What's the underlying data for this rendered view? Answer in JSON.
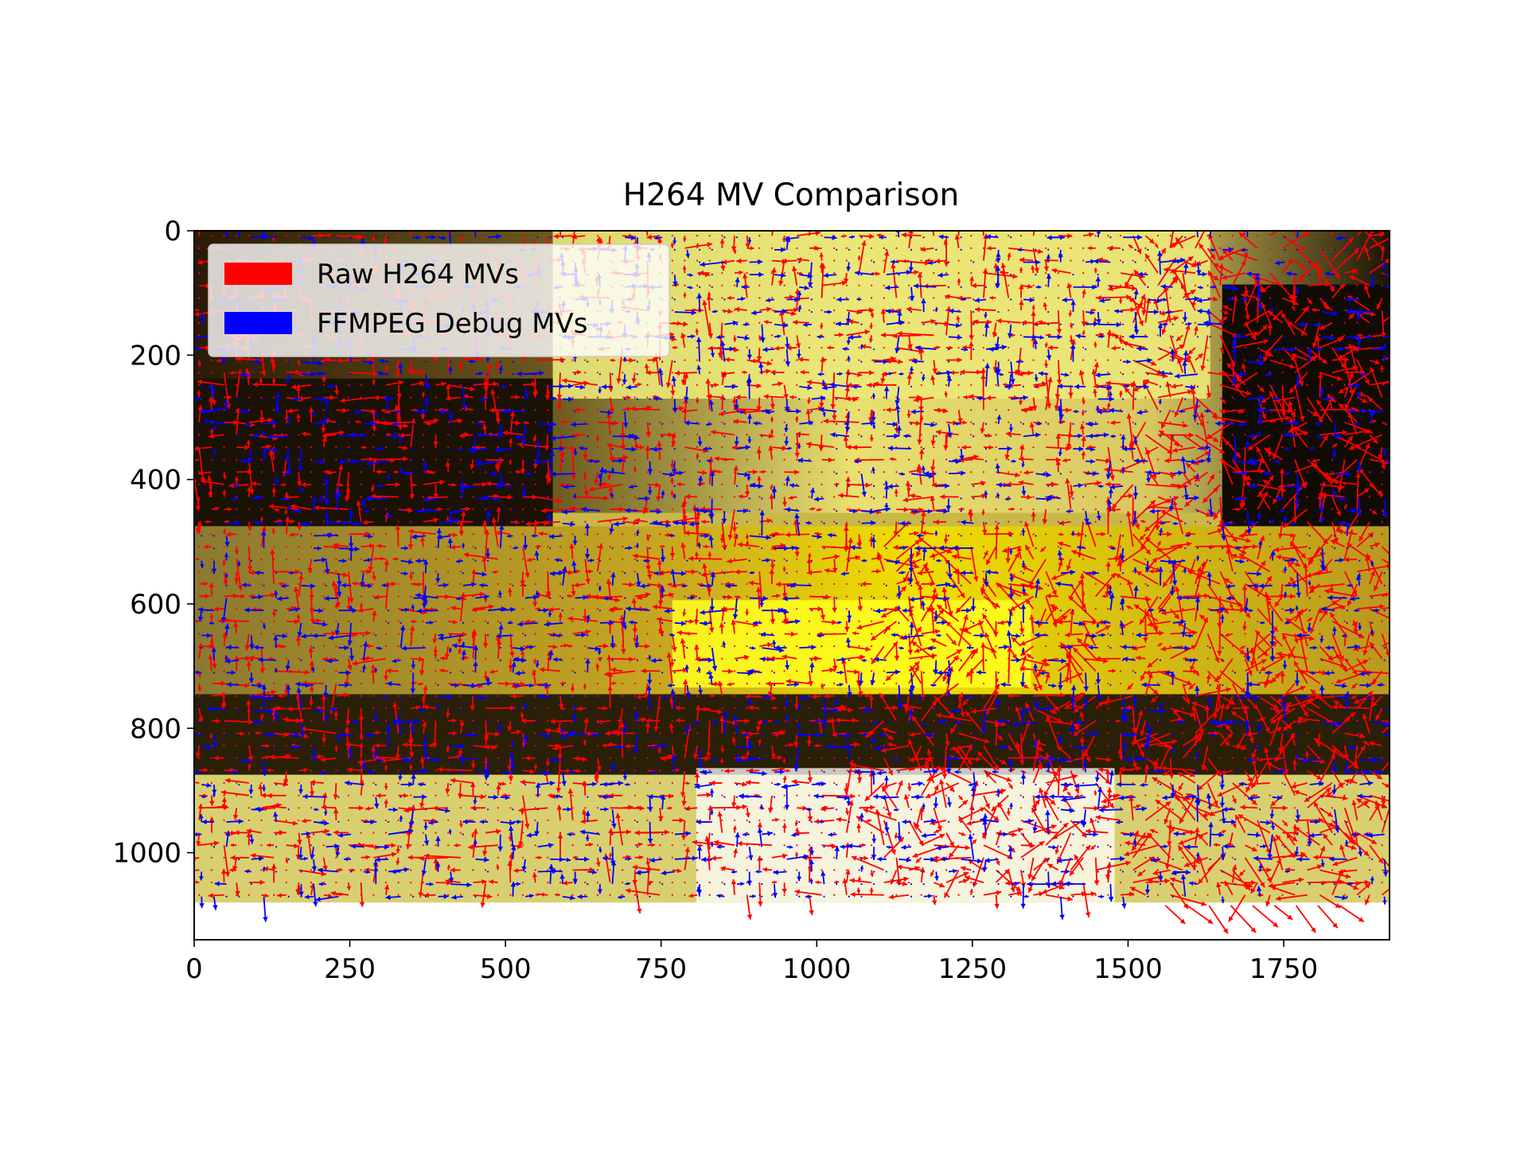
{
  "chart_data": {
    "type": "quiver",
    "title": "H264 MV Comparison",
    "xlabel": "",
    "ylabel": "",
    "xlim": [
      0,
      1920
    ],
    "ylim": [
      1140,
      0
    ],
    "image_extent": {
      "width": 1920,
      "height": 1080
    },
    "x_ticks": [
      0,
      250,
      500,
      750,
      1000,
      1250,
      1500,
      1750
    ],
    "y_ticks": [
      0,
      200,
      400,
      600,
      800,
      1000
    ],
    "legend": {
      "placement": "upper-left",
      "entries": [
        {
          "label": "Raw H264 MVs",
          "color": "#ff0000"
        },
        {
          "label": "FFMPEG Debug MVs",
          "color": "#0000ff"
        }
      ]
    },
    "series": [
      {
        "name": "Raw H264 MVs",
        "color": "#ff0000",
        "grid_step": 16,
        "vectors_summary": "dense red motion-vector arrows across frame; long vectors concentrated near right side and lower-middle region"
      },
      {
        "name": "FFMPEG Debug MVs",
        "color": "#0000ff",
        "grid_step": 16,
        "vectors_summary": "blue motion-vector arrows, sparser, largely aligned with red vectors in blocks"
      }
    ]
  }
}
